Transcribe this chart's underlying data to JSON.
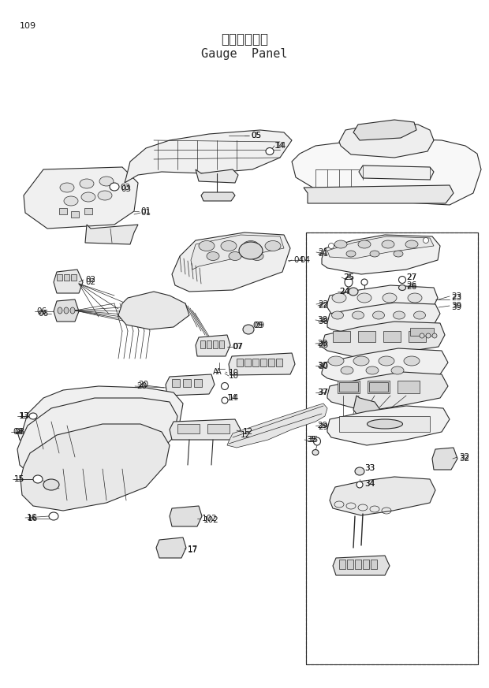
{
  "page_number": "109",
  "title_japanese": "ゲージパネル",
  "title_english": "Gauge  Panel",
  "bg_color": "#ffffff",
  "line_color": "#2a2a2a",
  "label_color": "#1a1a1a",
  "title_fontsize": 11,
  "page_num_fontsize": 8,
  "label_fontsize": 7.5,
  "fig_width": 6.2,
  "fig_height": 8.73,
  "dpi": 100
}
